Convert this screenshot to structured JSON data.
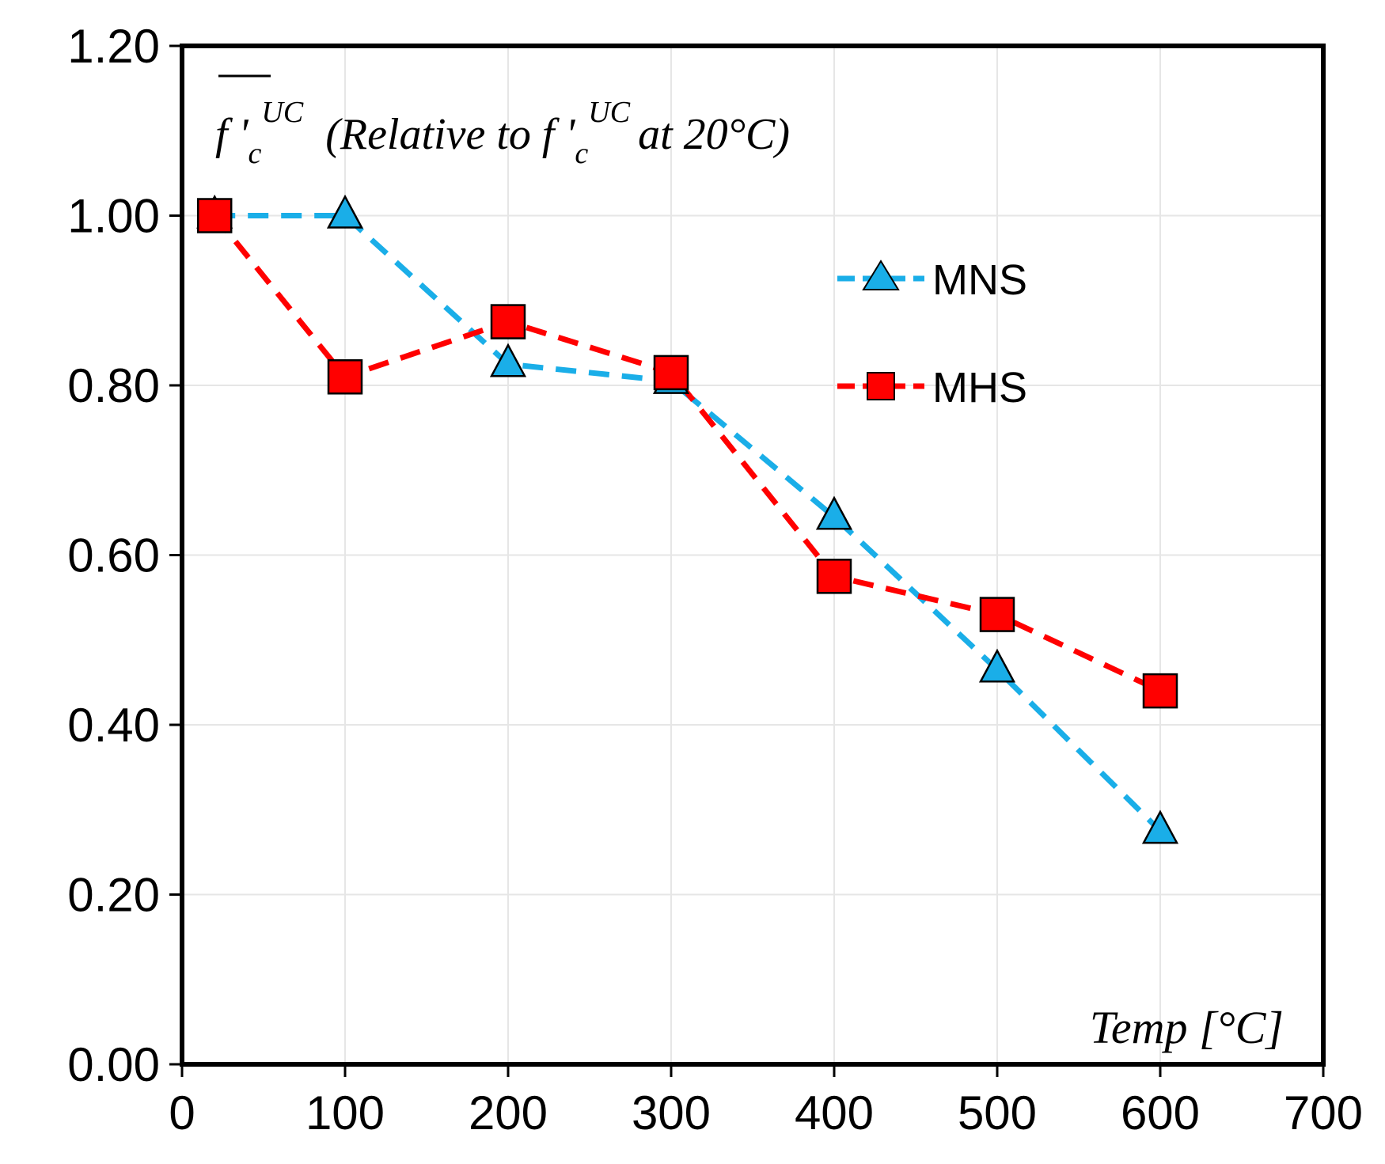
{
  "chart_data": {
    "type": "line",
    "x": [
      20,
      100,
      200,
      300,
      400,
      500,
      600
    ],
    "series": [
      {
        "name": "MNS",
        "color": "#1aaee8",
        "marker": "triangle",
        "values": [
          1.0,
          1.0,
          0.825,
          0.805,
          0.645,
          0.465,
          0.275
        ]
      },
      {
        "name": "MHS",
        "color": "#ff0000",
        "marker": "square",
        "values": [
          1.0,
          0.81,
          0.875,
          0.815,
          0.575,
          0.53,
          0.44
        ]
      }
    ],
    "xlim": [
      0,
      700
    ],
    "ylim": [
      0,
      1.2
    ],
    "x_ticks": [
      "0",
      "100",
      "200",
      "300",
      "400",
      "500",
      "600",
      "700"
    ],
    "y_ticks": [
      "0.00",
      "0.20",
      "0.40",
      "0.60",
      "0.80",
      "1.00",
      "1.20"
    ],
    "xlabel": "Temp [°C]",
    "ylabel": {
      "symbol": "f '",
      "symbol_sub": "c",
      "symbol_sup": "UC",
      "relative_prefix": "(Relative to",
      "ref_symbol": "f '",
      "ref_sub": "c",
      "ref_sup": "UC",
      "relative_suffix": "at 20°C)"
    },
    "grid": true,
    "legend_position": "top-right"
  }
}
